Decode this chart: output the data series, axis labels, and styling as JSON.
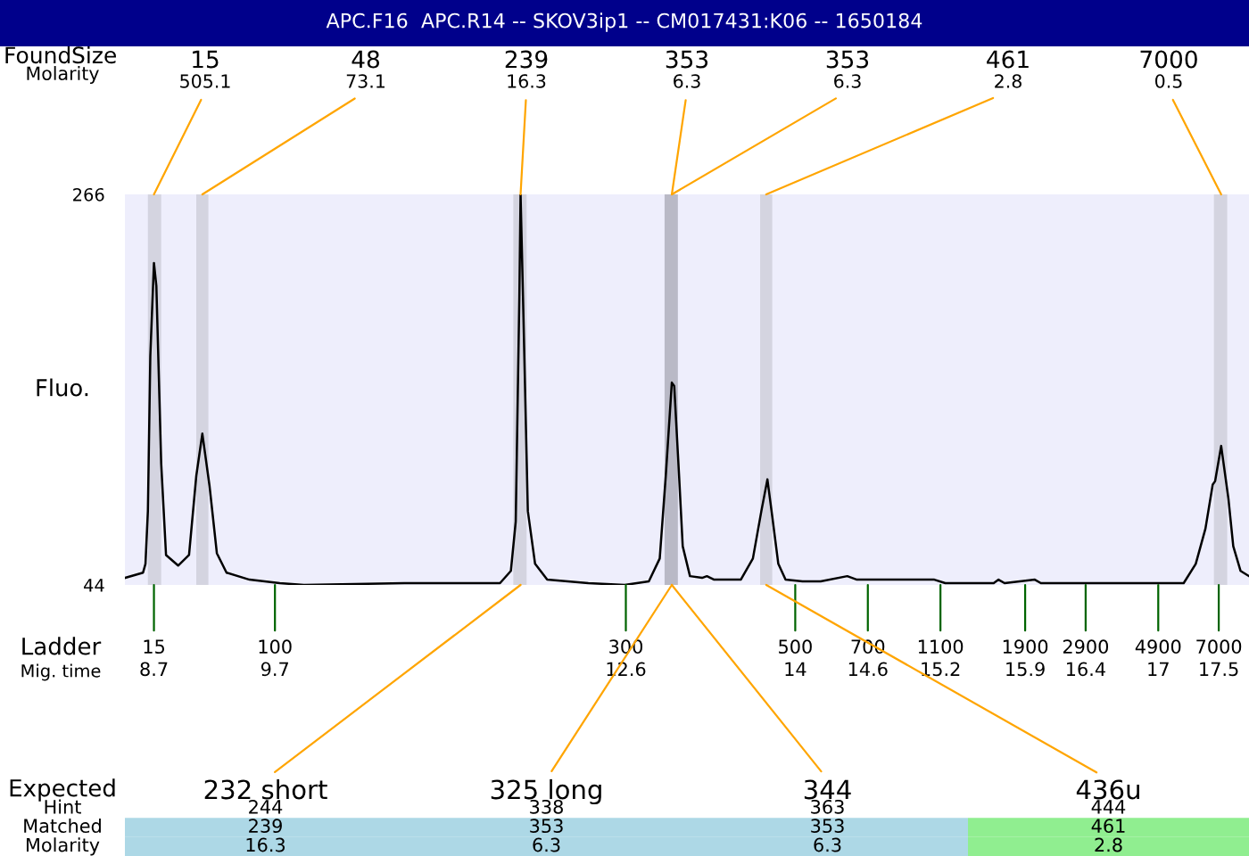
{
  "chart_data": [
    {
      "type": "line",
      "title": "APC.F16  APC.R14 -- SKOV3ip1 -- CM017431:K06 -- 1650184",
      "ylabel": "Fluo.",
      "xlabel": "Mig. time",
      "x": [
        8.46,
        8.61,
        8.63,
        8.65,
        8.67,
        8.7,
        8.72,
        8.76,
        8.8,
        8.9,
        8.99,
        9.05,
        9.1,
        9.16,
        9.22,
        9.3,
        9.49,
        9.74,
        9.94,
        10.77,
        11.56,
        11.65,
        11.69,
        11.72,
        11.73,
        11.75,
        11.79,
        11.85,
        11.95,
        12.29,
        12.59,
        12.79,
        12.88,
        12.93,
        12.98,
        13.0,
        13.04,
        13.07,
        13.13,
        13.23,
        13.27,
        13.33,
        13.55,
        13.65,
        13.72,
        13.77,
        13.81,
        13.86,
        13.92,
        14.06,
        14.21,
        14.43,
        14.51,
        14.65,
        15.15,
        15.24,
        15.64,
        15.68,
        15.73,
        15.98,
        16.03,
        16.32,
        16.62,
        17.01,
        17.21,
        17.31,
        17.39,
        17.45,
        17.47,
        17.52,
        17.54,
        17.58,
        17.62,
        17.68,
        17.75
      ],
      "series": [
        {
          "color": "#000000",
          "values": [
            48,
            51,
            56,
            86,
            174,
            227,
            214,
            113,
            61,
            55,
            61,
            106,
            130,
            100,
            62,
            51,
            47,
            45,
            44,
            45,
            45,
            52,
            80,
            208,
            266,
            208,
            86,
            56,
            47,
            45,
            44,
            46,
            59,
            106,
            159,
            157,
            106,
            66,
            49,
            48,
            49,
            47,
            47,
            59,
            86,
            104,
            83,
            56,
            47,
            46,
            46,
            49,
            47,
            47,
            47,
            45,
            45,
            47,
            45,
            47,
            45,
            45,
            45,
            45,
            45,
            56,
            76,
            101,
            103,
            123,
            113,
            93,
            66,
            52,
            49
          ]
        }
      ],
      "xlim": [
        8.46,
        17.75
      ],
      "ylim": [
        44,
        266
      ],
      "xticks": [
        8.7,
        9.7,
        12.6,
        14,
        14.6,
        15.2,
        15.9,
        16.4,
        17,
        17.5
      ],
      "yticks": [
        44,
        266
      ],
      "bands": [
        {
          "axis": "x",
          "from": 8.65,
          "to": 8.76,
          "color": "#d4d4e0"
        },
        {
          "axis": "x",
          "from": 9.05,
          "to": 9.15,
          "color": "#d4d4e0"
        },
        {
          "axis": "x",
          "from": 11.67,
          "to": 11.78,
          "color": "#d4d4e0"
        },
        {
          "axis": "x",
          "from": 12.92,
          "to": 13.03,
          "color": "#b9b9c6"
        },
        {
          "axis": "x",
          "from": 13.71,
          "to": 13.81,
          "color": "#d4d4e0"
        },
        {
          "axis": "x",
          "from": 17.46,
          "to": 17.57,
          "color": "#d4d4e0"
        }
      ],
      "annotations": [
        "Found",
        "Size",
        "Molarity",
        {
          "text": "15\n505.1",
          "x": 8.7,
          "y": 266
        },
        {
          "text": "48\n73.1",
          "x": 9.1,
          "y": 266
        },
        {
          "text": "239\n16.3",
          "x": 11.73,
          "y": 266
        },
        {
          "text": "353\n6.3",
          "x": 12.98,
          "y": 266
        },
        {
          "text": "353\n6.3",
          "x": 12.98,
          "y": 266
        },
        {
          "text": "461\n2.8",
          "x": 13.76,
          "y": 266
        },
        {
          "text": "7000\n0.5",
          "x": 17.52,
          "y": 266
        },
        "Ladder",
        {
          "text": "15",
          "x": 8.7,
          "y": 44
        },
        {
          "text": "100",
          "x": 9.7,
          "y": 44
        },
        {
          "text": "300",
          "x": 12.6,
          "y": 44
        },
        {
          "text": "500",
          "x": 14,
          "y": 44
        },
        {
          "text": "700",
          "x": 14.6,
          "y": 44
        },
        {
          "text": "1100",
          "x": 15.2,
          "y": 44
        },
        {
          "text": "1900",
          "x": 15.9,
          "y": 44
        },
        {
          "text": "2900",
          "x": 16.4,
          "y": 44
        },
        {
          "text": "4900",
          "x": 17,
          "y": 44
        },
        {
          "text": "7000",
          "x": 17.5,
          "y": 44
        },
        "Expected",
        {
          "text": "232 short",
          "x": 11.73,
          "y": 44
        },
        {
          "text": "325 long",
          "x": 12.98,
          "y": 44
        },
        {
          "text": "344",
          "x": 12.98,
          "y": 44
        },
        {
          "text": "436u",
          "x": 13.76,
          "y": 44
        }
      ]
    },
    {
      "type": "other",
      "annotations": [
        "Hint",
        "244",
        "338",
        "363",
        "444",
        "Matched",
        "239",
        "353",
        "353",
        "461",
        "Molarity",
        "16.3",
        "6.3",
        "6.3",
        "2.8"
      ],
      "colors": [
        null,
        null,
        null,
        null,
        null,
        null,
        "#add8e6",
        "#add8e6",
        "#add8e6",
        "#90ee90",
        null,
        "#add8e6",
        "#add8e6",
        "#add8e6",
        "#90ee90"
      ]
    }
  ]
}
